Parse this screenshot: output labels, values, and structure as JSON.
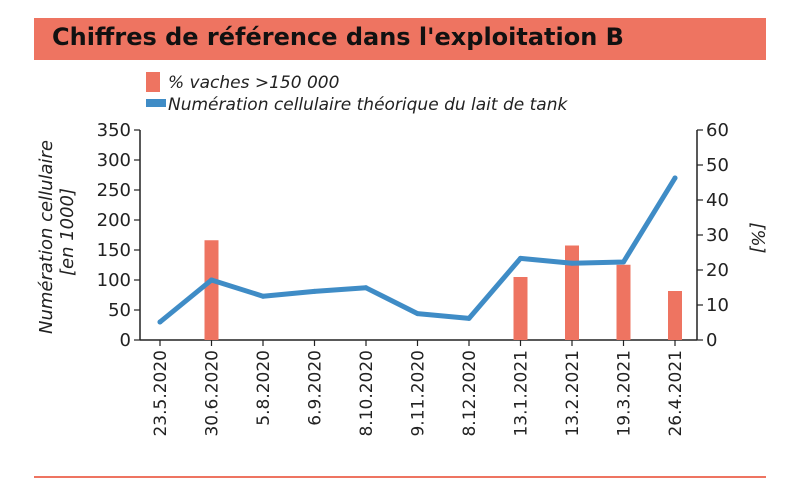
{
  "header": {
    "title": "Chiffres de référence dans l'exploitation B"
  },
  "colors": {
    "accent": "#ee7461",
    "line": "#3f8cc6"
  },
  "chart_data": {
    "type": "bar",
    "title": "Chiffres de référence dans l'exploitation B",
    "categories": [
      "23.5.2020",
      "30.6.2020",
      "5.8.2020",
      "6.9.2020",
      "8.10.2020",
      "9.11.2020",
      "8.12.2020",
      "13.1.2021",
      "13.2.2021",
      "19.3.2021",
      "26.4.2021"
    ],
    "series": [
      {
        "name": "% vaches >150 000",
        "type": "bar",
        "axis": "right",
        "values": [
          null,
          28.5,
          null,
          null,
          null,
          null,
          null,
          18,
          27,
          21.5,
          14
        ]
      },
      {
        "name": "Numération cellulaire théorique du lait de tank",
        "type": "line",
        "axis": "left",
        "values": [
          30,
          100,
          73,
          81,
          87,
          44,
          36,
          136,
          128,
          130,
          270
        ]
      }
    ],
    "ylabel_left": [
      "Numération cellulaire",
      "[en 1000]"
    ],
    "ylabel_right": "[%]",
    "ylim_left": [
      0,
      350
    ],
    "yticks_left": [
      0,
      50,
      100,
      150,
      200,
      250,
      300,
      350
    ],
    "ylim_right": [
      0,
      60
    ],
    "yticks_right": [
      0,
      10,
      20,
      30,
      40,
      50,
      60
    ],
    "grid": false,
    "legend_position": "top"
  }
}
